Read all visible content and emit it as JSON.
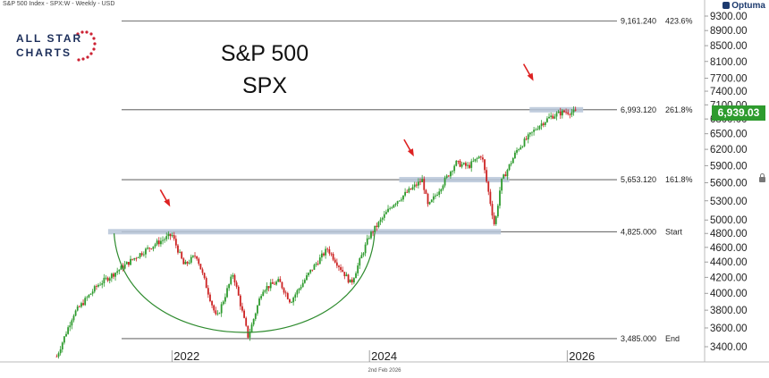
{
  "header": {
    "text": "S&P 500 Index - SPX:W - Weekly - USD"
  },
  "branding": {
    "logo_line1": "ALL STAR",
    "logo_line2": "CHARTS",
    "provider": "Optuma"
  },
  "footer": {
    "date_text": "2nd Feb 2026"
  },
  "colors": {
    "candle_up": "#2e9b2e",
    "candle_down": "#cc2222",
    "arc": "#2e8b2e",
    "arrow": "#dd2222",
    "zone": "#b7c6d8",
    "badge": "#2e9b2e",
    "level_line": "#444444"
  },
  "chart_data": {
    "type": "candlestick",
    "title": [
      "S&P 500",
      "SPX"
    ],
    "x_ticks": [
      "2022",
      "2024",
      "2026"
    ],
    "x_tick_dates": [
      "2022-01-01",
      "2024-01-01",
      "2026-01-01"
    ],
    "y_ticks": [
      "3400.00",
      "3600.00",
      "3800.00",
      "4000.00",
      "4200.00",
      "4400.00",
      "4600.00",
      "4800.00",
      "5000.00",
      "5300.00",
      "5600.00",
      "5900.00",
      "6200.00",
      "6500.00",
      "6800.00",
      "7100.00",
      "7400.00",
      "7700.00",
      "8100.00",
      "8500.00",
      "8900.00",
      "9300.00"
    ],
    "y_tick_values": [
      3400,
      3600,
      3800,
      4000,
      4200,
      4400,
      4600,
      4800,
      5000,
      5300,
      5600,
      5900,
      6200,
      6500,
      6800,
      7100,
      7400,
      7700,
      8100,
      8500,
      8900,
      9300
    ],
    "y_scale": "log",
    "last_price": "6,939.03",
    "levels": [
      {
        "value": 9161.24,
        "label": "9,161.240",
        "tag": "423.6%"
      },
      {
        "value": 6993.12,
        "label": "6,993.120",
        "tag": "261.8%"
      },
      {
        "value": 5653.12,
        "label": "5,653.120",
        "tag": "161.8%"
      },
      {
        "value": 4825.0,
        "label": "4,825.000",
        "tag": "Start"
      },
      {
        "value": 3485.0,
        "label": "3,485.000",
        "tag": "End"
      }
    ],
    "price_path": [
      [
        "2020-11-01",
        3300
      ],
      [
        "2021-01-01",
        3750
      ],
      [
        "2021-04-01",
        4100
      ],
      [
        "2021-06-01",
        4250
      ],
      [
        "2021-09-01",
        4500
      ],
      [
        "2021-11-01",
        4650
      ],
      [
        "2022-01-01",
        4780
      ],
      [
        "2022-02-15",
        4350
      ],
      [
        "2022-04-01",
        4500
      ],
      [
        "2022-06-15",
        3700
      ],
      [
        "2022-08-15",
        4250
      ],
      [
        "2022-10-10",
        3500
      ],
      [
        "2022-12-01",
        4050
      ],
      [
        "2023-02-01",
        4150
      ],
      [
        "2023-03-15",
        3900
      ],
      [
        "2023-06-01",
        4300
      ],
      [
        "2023-07-30",
        4580
      ],
      [
        "2023-10-25",
        4120
      ],
      [
        "2023-12-31",
        4760
      ],
      [
        "2024-03-28",
        5250
      ],
      [
        "2024-07-15",
        5650
      ],
      [
        "2024-08-05",
        5200
      ],
      [
        "2024-11-15",
        5950
      ],
      [
        "2024-12-31",
        5880
      ],
      [
        "2025-02-19",
        6100
      ],
      [
        "2025-04-08",
        4900
      ],
      [
        "2025-05-01",
        5600
      ],
      [
        "2025-07-01",
        6200
      ],
      [
        "2025-09-15",
        6650
      ],
      [
        "2025-11-01",
        6850
      ],
      [
        "2025-12-20",
        6950
      ],
      [
        "2026-02-02",
        6939
      ]
    ],
    "support_zones": [
      {
        "from": "2021-05-10",
        "to": "2025-05-01",
        "level": 4825.0
      },
      {
        "from": "2024-04-20",
        "to": "2025-06-01",
        "level": 5653.12
      },
      {
        "from": "2025-08-15",
        "to": "2026-03-01",
        "level": 6993.12
      }
    ],
    "arrows": [
      "2022-01-01",
      "2024-06-20",
      "2025-09-05"
    ],
    "arc": {
      "from": "2021-06-01",
      "low_date": "2022-12-31",
      "to": "2024-01-20",
      "top": 4800,
      "bottom": 3485
    }
  }
}
